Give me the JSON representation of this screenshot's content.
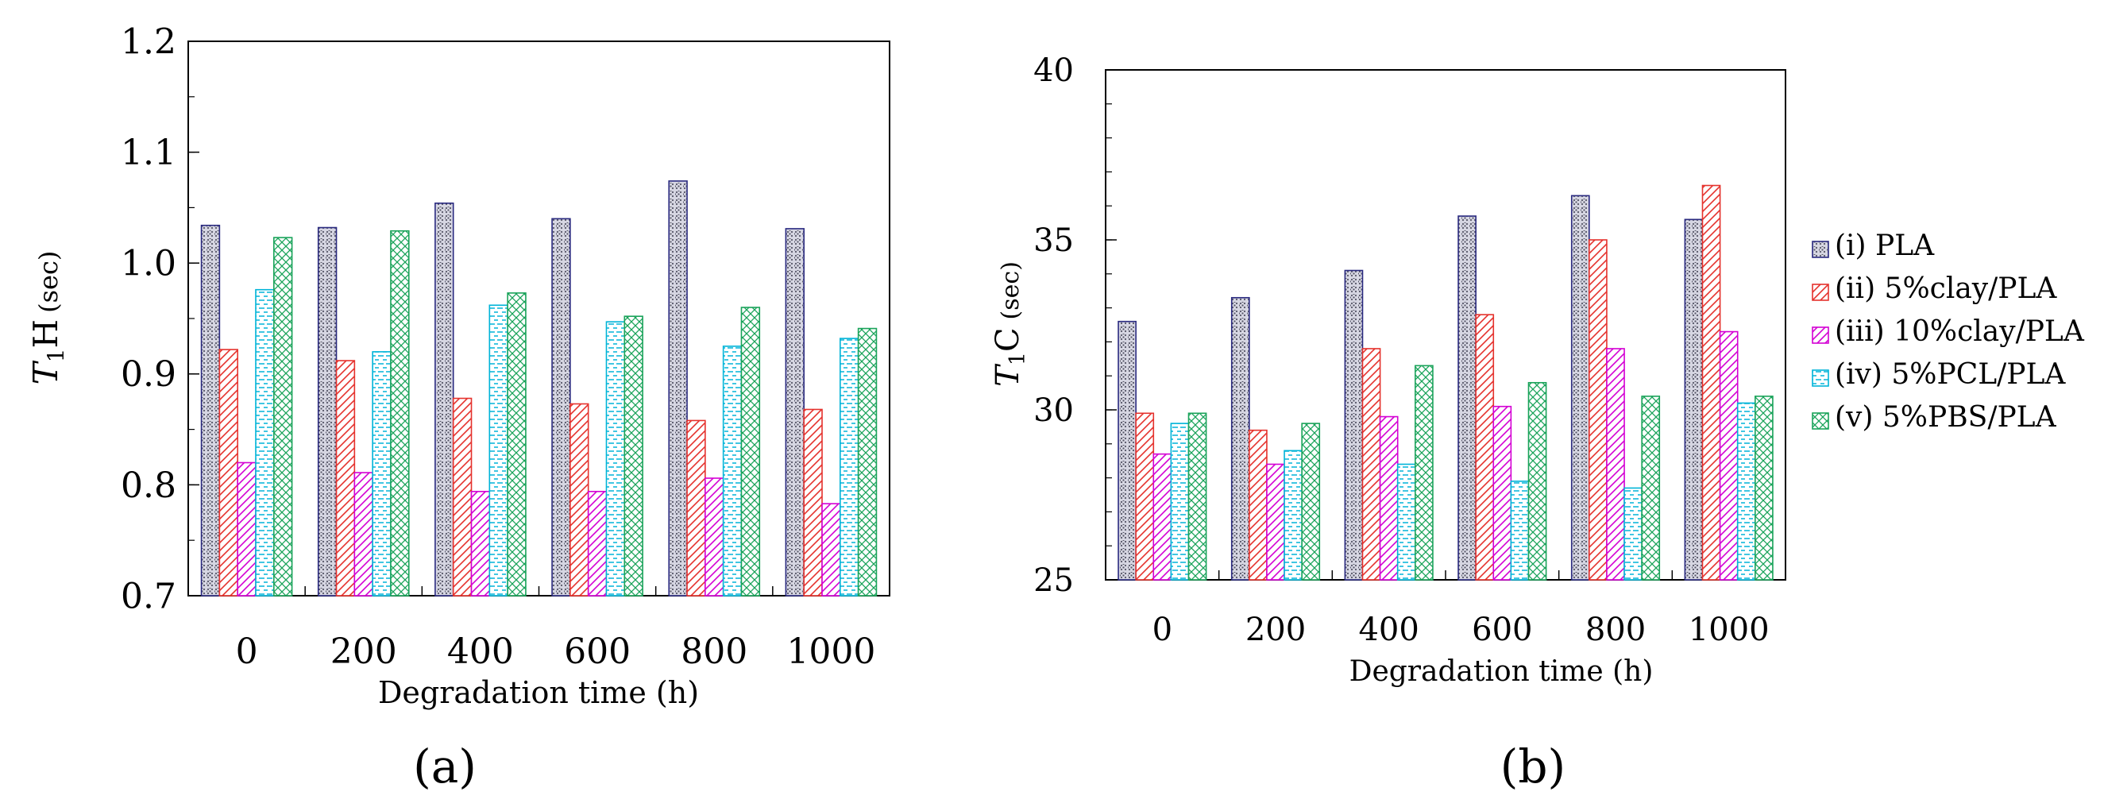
{
  "series_names": [
    "(i) PLA",
    "(ii) 5%clay/PLA",
    "(iii) 10%clay/PLA",
    "(iv) 5%PCL/PLA",
    "(v) 5%PBS/PLA"
  ],
  "series_styles": [
    {
      "color": "#2a2a80",
      "pattern": "dots"
    },
    {
      "color": "#e5322d",
      "pattern": "hatch"
    },
    {
      "color": "#d400d4",
      "pattern": "hatch"
    },
    {
      "color": "#00b4d8",
      "pattern": "dash"
    },
    {
      "color": "#1aa35a",
      "pattern": "cross"
    }
  ],
  "panel_labels": {
    "a": "(a)",
    "b": "(b)"
  },
  "chart_data": [
    {
      "type": "bar",
      "id": "a",
      "title": "",
      "xlabel": "Degradation time (h)",
      "ylabel_italic": "T",
      "ylabel_sub": "1",
      "ylabel_main": "H",
      "ylabel_unit": "(sec)",
      "ylim": [
        0.7,
        1.2
      ],
      "yticks": [
        "0.7",
        "0.8",
        "0.9",
        "1.0",
        "1.1",
        "1.2"
      ],
      "categories": [
        "0",
        "200",
        "400",
        "600",
        "800",
        "1000"
      ],
      "series": [
        {
          "name": "(i) PLA",
          "values": [
            1.034,
            1.032,
            1.054,
            1.04,
            1.074,
            1.031
          ]
        },
        {
          "name": "(ii) 5%clay/PLA",
          "values": [
            0.922,
            0.912,
            0.878,
            0.873,
            0.858,
            0.868
          ]
        },
        {
          "name": "(iii) 10%clay/PLA",
          "values": [
            0.82,
            0.811,
            0.794,
            0.794,
            0.806,
            0.783
          ]
        },
        {
          "name": "(iv) 5%PCL/PLA",
          "values": [
            0.976,
            0.92,
            0.962,
            0.947,
            0.925,
            0.932
          ]
        },
        {
          "name": "(v) 5%PBS/PLA",
          "values": [
            1.023,
            1.029,
            0.973,
            0.952,
            0.96,
            0.941
          ]
        }
      ]
    },
    {
      "type": "bar",
      "id": "b",
      "title": "",
      "xlabel": "Degradation time (h)",
      "ylabel_italic": "T",
      "ylabel_sub": "1",
      "ylabel_main": "C",
      "ylabel_unit": "(sec)",
      "ylim": [
        25,
        40
      ],
      "yticks": [
        "25",
        "30",
        "35",
        "40"
      ],
      "categories": [
        "0",
        "200",
        "400",
        "600",
        "800",
        "1000"
      ],
      "series": [
        {
          "name": "(i) PLA",
          "values": [
            32.6,
            33.3,
            34.1,
            35.7,
            36.3,
            35.6
          ]
        },
        {
          "name": "(ii) 5%clay/PLA",
          "values": [
            29.9,
            29.4,
            31.8,
            32.8,
            35.0,
            36.6
          ]
        },
        {
          "name": "(iii) 10%clay/PLA",
          "values": [
            28.7,
            28.4,
            29.8,
            30.1,
            31.8,
            32.3
          ]
        },
        {
          "name": "(iv) 5%PCL/PLA",
          "values": [
            29.6,
            28.8,
            28.4,
            27.9,
            27.7,
            30.2
          ]
        },
        {
          "name": "(v) 5%PBS/PLA",
          "values": [
            29.9,
            29.6,
            31.3,
            30.8,
            30.4,
            30.4
          ]
        }
      ],
      "legend_position": "right"
    }
  ]
}
